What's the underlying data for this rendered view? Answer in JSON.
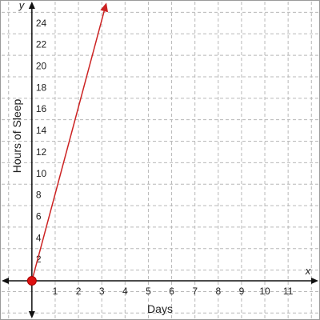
{
  "chart_data": {
    "type": "line",
    "xlabel": "Days",
    "ylabel": "Hours of Sleep",
    "x_axis_var": "x",
    "y_axis_var": "y",
    "xlim": [
      -1.3,
      12.3
    ],
    "ylim": [
      -3.5,
      26
    ],
    "x_ticks": [
      "1",
      "2",
      "3",
      "4",
      "5",
      "6",
      "7",
      "8",
      "9",
      "10",
      "11"
    ],
    "y_ticks": [
      "2",
      "4",
      "6",
      "8",
      "10",
      "12",
      "14",
      "16",
      "18",
      "20",
      "22",
      "24"
    ],
    "grid": true,
    "series": [
      {
        "points": [
          [
            0,
            0
          ],
          [
            3.2,
            25.9
          ]
        ],
        "color": "#cc2222",
        "start_marker": "closed-circle",
        "end_marker": "arrow"
      }
    ]
  }
}
